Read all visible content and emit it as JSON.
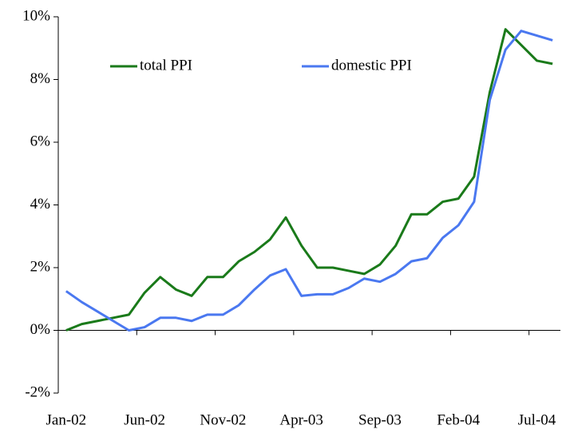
{
  "chart_data": {
    "type": "line",
    "categories": [
      "Jan-02",
      null,
      null,
      null,
      null,
      "Jun-02",
      null,
      null,
      null,
      null,
      "Nov-02",
      null,
      null,
      null,
      null,
      "Apr-03",
      null,
      null,
      null,
      null,
      "Sep-03",
      null,
      null,
      null,
      null,
      "Feb-04",
      null,
      null,
      null,
      null,
      "Jul-04",
      null
    ],
    "series": [
      {
        "name": "total PPI",
        "color": "#1a7a1a",
        "values": [
          0,
          0.2,
          0.3,
          0.4,
          0.5,
          1.2,
          1.7,
          1.3,
          1.1,
          1.7,
          1.7,
          2.2,
          2.5,
          2.9,
          3.6,
          2.7,
          2.0,
          2.0,
          1.9,
          1.8,
          2.1,
          2.7,
          3.7,
          3.7,
          4.1,
          4.2,
          4.9,
          7.6,
          9.6,
          9.1,
          8.6,
          8.5
        ]
      },
      {
        "name": "domestic PPI",
        "color": "#4a78f0",
        "values": [
          1.25,
          0.9,
          0.6,
          0.3,
          0.0,
          0.1,
          0.4,
          0.4,
          0.3,
          0.5,
          0.5,
          0.8,
          1.3,
          1.75,
          1.95,
          1.1,
          1.15,
          1.15,
          1.35,
          1.65,
          1.55,
          1.8,
          2.2,
          2.3,
          2.95,
          3.35,
          4.1,
          7.35,
          8.95,
          9.55,
          9.4,
          9.25
        ]
      }
    ],
    "ylim": [
      -2,
      10
    ],
    "yticks": [
      {
        "value": -2,
        "label": "-2%"
      },
      {
        "value": 0,
        "label": "0%"
      },
      {
        "value": 2,
        "label": "2%"
      },
      {
        "value": 4,
        "label": "4%"
      },
      {
        "value": 6,
        "label": "6%"
      },
      {
        "value": 8,
        "label": "8%"
      },
      {
        "value": 10,
        "label": "10%"
      }
    ],
    "grid": false
  }
}
